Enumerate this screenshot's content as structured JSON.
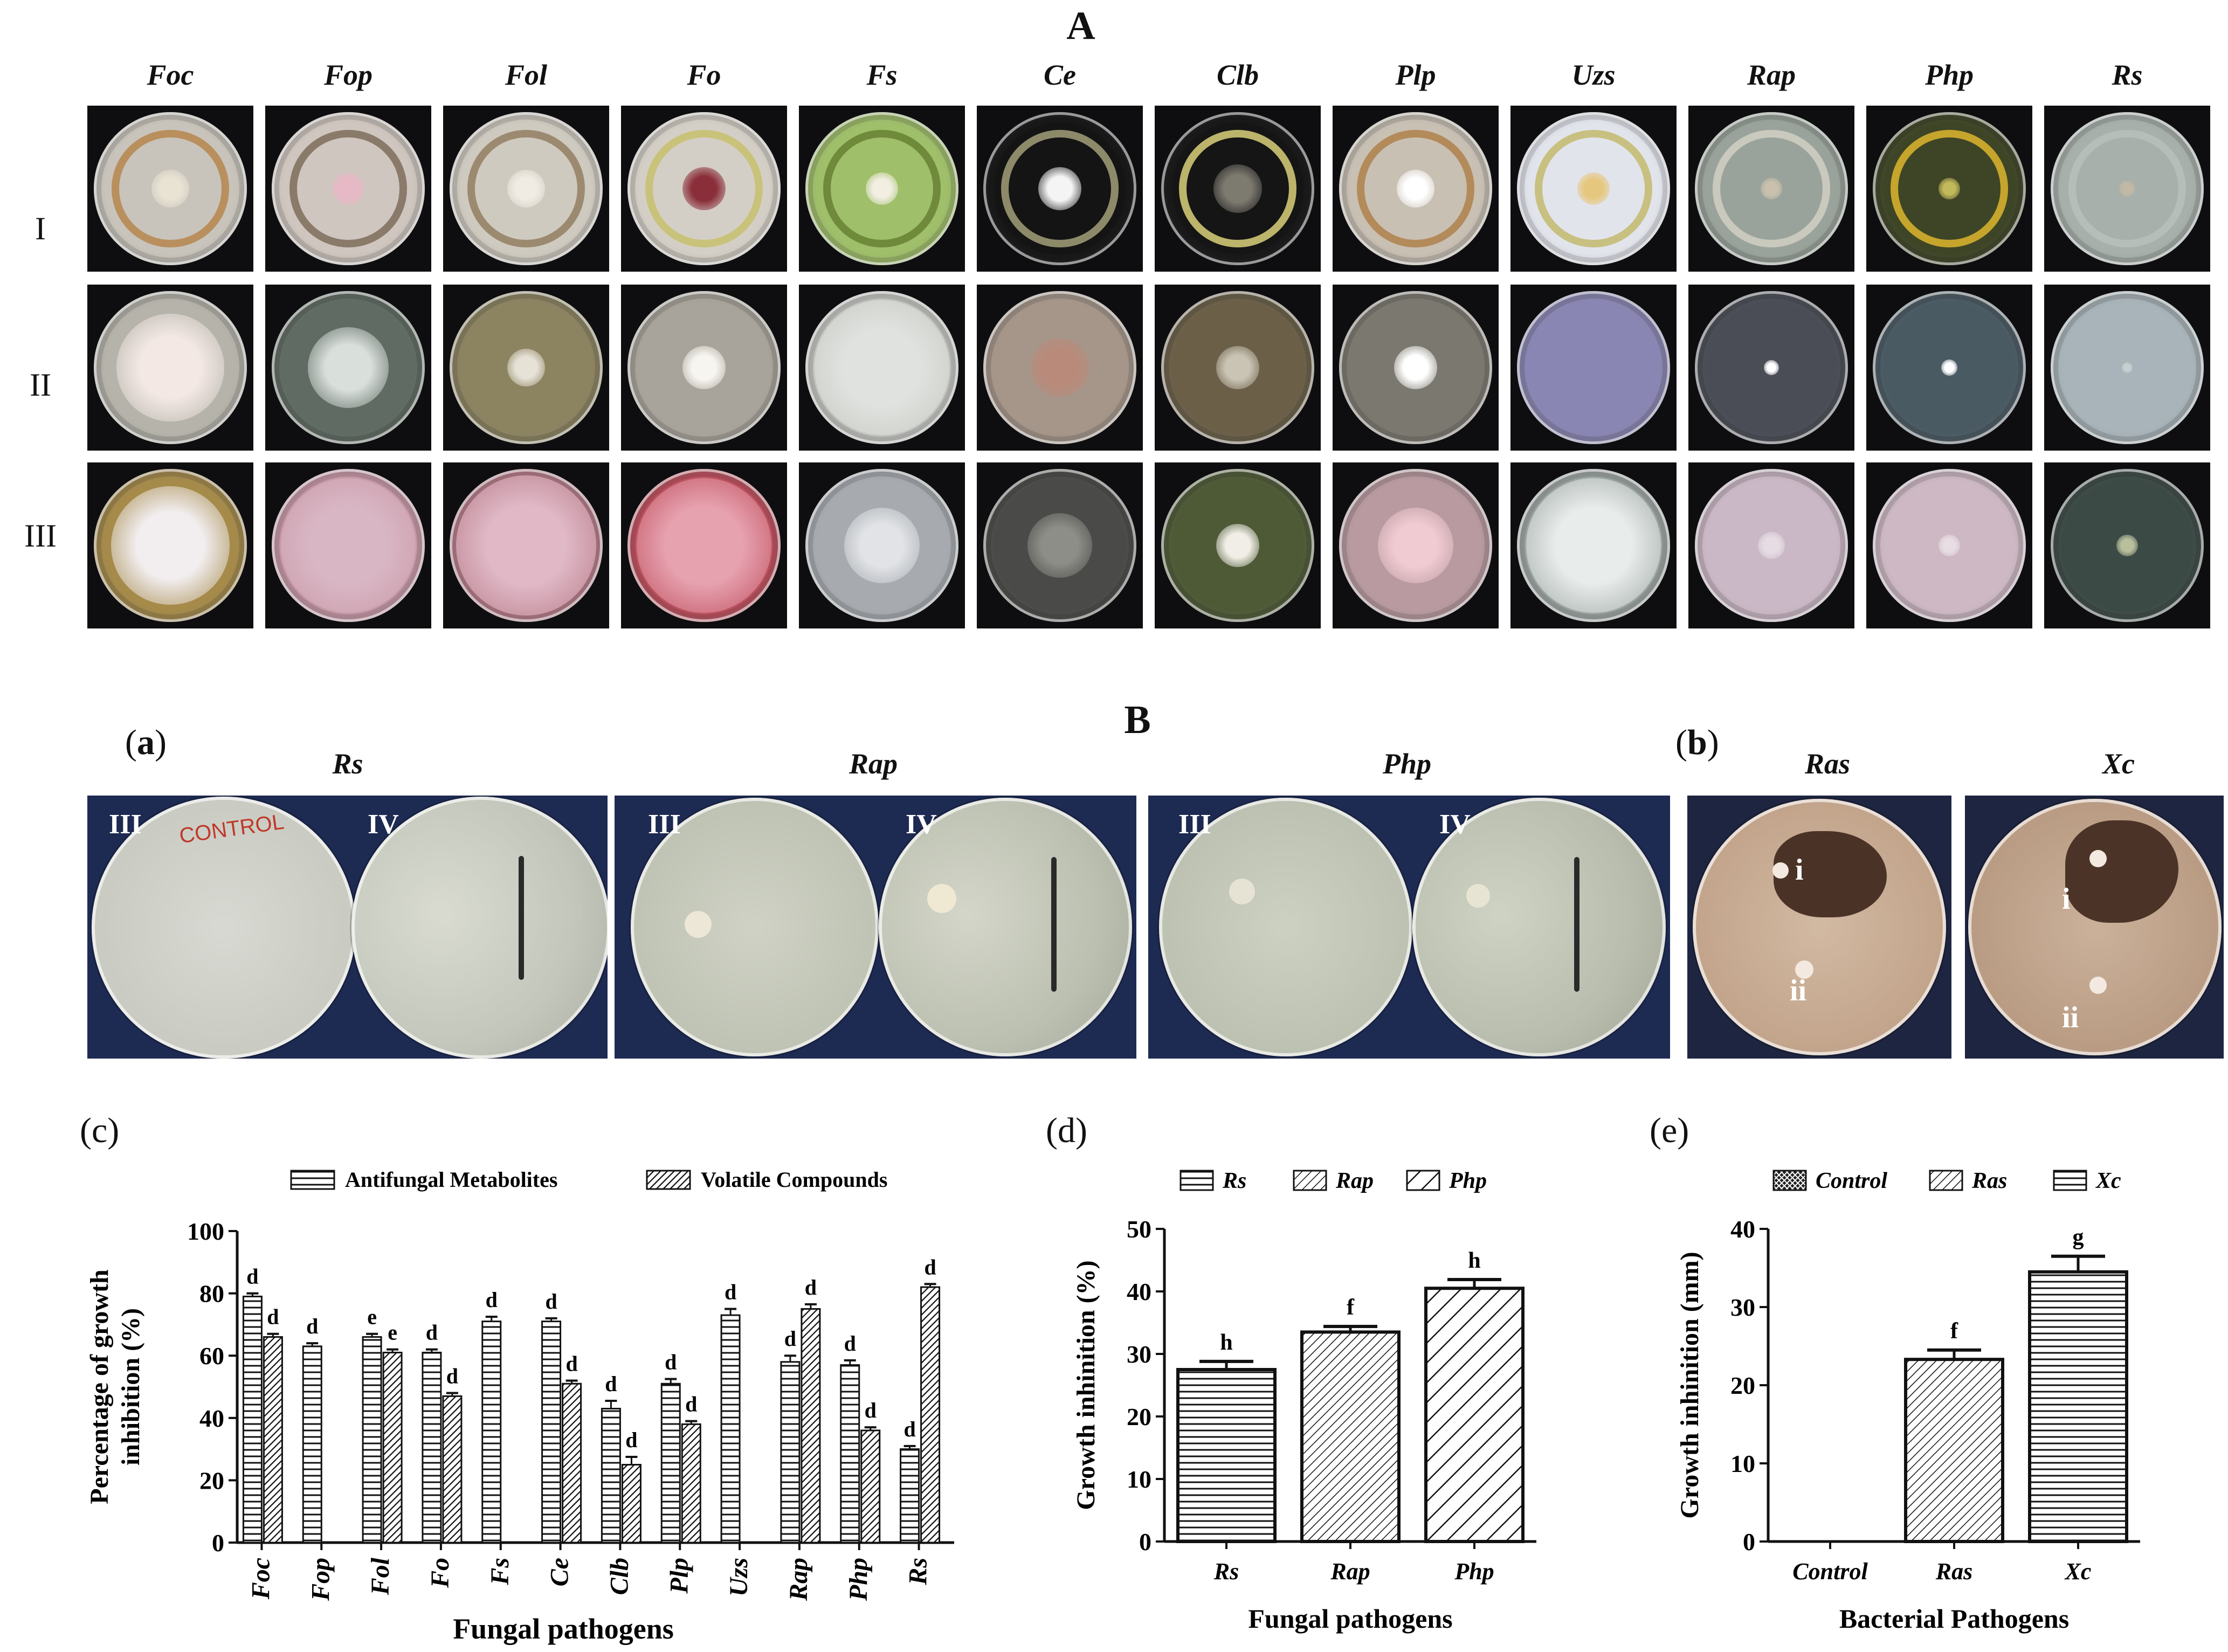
{
  "panel_a": {
    "letter": "A",
    "organisms": [
      "Foc",
      "Fop",
      "Fol",
      "Fo",
      "Fs",
      "Ce",
      "Clb",
      "Plp",
      "Uzs",
      "Rap",
      "Php",
      "Rs"
    ],
    "rows": [
      "I",
      "II",
      "III"
    ]
  },
  "panel_b": {
    "letter": "B",
    "sub_a": {
      "open": "(",
      "letter": "a",
      "close": ")"
    },
    "sub_b": {
      "open": "(",
      "letter": "b",
      "close": ")"
    },
    "groups": [
      {
        "organism": "Rs",
        "plates": [
          "III",
          "IV"
        ]
      },
      {
        "organism": "Rap",
        "plates": [
          "III",
          "IV"
        ]
      },
      {
        "organism": "Php",
        "plates": [
          "III",
          "IV"
        ]
      }
    ],
    "bacteria": [
      {
        "organism": "Ras",
        "spots": [
          "i",
          "ii"
        ]
      },
      {
        "organism": "Xc",
        "spots": [
          "i",
          "ii"
        ]
      }
    ],
    "control_writing": "CONTROL"
  },
  "chart_data": [
    {
      "panel": "(c)",
      "type": "bar",
      "categories": [
        "Foc",
        "Fop",
        "Fol",
        "Fo",
        "Fs",
        "Ce",
        "Clb",
        "Plp",
        "Uzs",
        "Rap",
        "Php",
        "Rs"
      ],
      "series": [
        {
          "name": "Antifungal Metabolites",
          "values": [
            79,
            63,
            66,
            61,
            71,
            71,
            43,
            51,
            73,
            58,
            57,
            30
          ],
          "errors": [
            1,
            1,
            1,
            1,
            1.5,
            1,
            2.5,
            1.5,
            2,
            2,
            1.5,
            1
          ],
          "letters": [
            "d",
            "d",
            "e",
            "d",
            "d",
            "d",
            "d",
            "d",
            "d",
            "d",
            "d",
            "d"
          ]
        },
        {
          "name": "Volatile Compounds",
          "values": [
            66,
            null,
            61,
            47,
            null,
            51,
            25,
            38,
            null,
            75,
            36,
            82
          ],
          "errors": [
            1,
            null,
            1,
            1,
            null,
            1,
            2.5,
            1,
            null,
            1.5,
            1,
            1
          ],
          "letters": [
            "d",
            "",
            "e",
            "d",
            "",
            "d",
            "d",
            "d",
            "",
            "d",
            "d",
            "d"
          ]
        }
      ],
      "xlabel": "Fungal pathogens",
      "ylabel": [
        "Percentage of growth",
        "inhibition (%)"
      ],
      "ylim": [
        0,
        100
      ],
      "yticks": [
        0,
        20,
        40,
        60,
        80,
        100
      ],
      "legend": "top"
    },
    {
      "panel": "(d)",
      "type": "bar",
      "categories": [
        "Rs",
        "Rap",
        "Php"
      ],
      "values": [
        27.5,
        33.5,
        40.5
      ],
      "errors": [
        1.3,
        0.9,
        1.4
      ],
      "letters": [
        "h",
        "f",
        "h"
      ],
      "legend_entries": [
        "Rs",
        "Rap",
        "Php"
      ],
      "xlabel": "Fungal pathogens",
      "ylabel": "Growth inhinition (%)",
      "ylim": [
        0,
        50
      ],
      "yticks": [
        0,
        10,
        20,
        30,
        40,
        50
      ],
      "legend": "top"
    },
    {
      "panel": "(e)",
      "type": "bar",
      "categories": [
        "Control",
        "Ras",
        "Xc"
      ],
      "values": [
        0,
        23.3,
        34.5
      ],
      "errors": [
        0,
        1.2,
        2.0
      ],
      "letters": [
        "",
        "f",
        "g"
      ],
      "legend_entries": [
        "Control",
        "Ras",
        "Xc"
      ],
      "xlabel": "Bacterial Pathogens",
      "ylabel": "Growth inhinition (mm)",
      "ylim": [
        0,
        40
      ],
      "yticks": [
        0,
        10,
        20,
        30,
        40
      ],
      "legend": "top"
    }
  ]
}
